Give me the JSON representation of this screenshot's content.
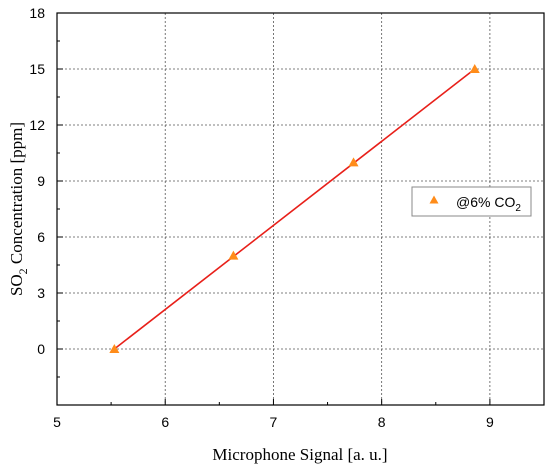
{
  "chart_data": {
    "type": "scatter",
    "xlabel": "Microphone Signal [a. u.]",
    "ylabel": {
      "pre": "SO",
      "sub": "2",
      "post": " Concentration [ppm]"
    },
    "xlim": [
      5,
      9.5
    ],
    "ylim": [
      -3,
      18
    ],
    "x_ticks": [
      5,
      6,
      7,
      8,
      9
    ],
    "y_ticks": [
      0,
      3,
      6,
      9,
      12,
      15,
      18
    ],
    "grid": true,
    "legend_position": "right",
    "series": [
      {
        "name": {
          "pre": "@6% CO",
          "sub": "2"
        },
        "marker": "triangle",
        "color": "#ff8c1a",
        "points": [
          {
            "x": 5.53,
            "y": 0
          },
          {
            "x": 6.63,
            "y": 5
          },
          {
            "x": 7.74,
            "y": 10
          },
          {
            "x": 8.86,
            "y": 15
          }
        ]
      }
    ],
    "fit_line": {
      "color": "#e8201a",
      "x": [
        5.53,
        8.86
      ],
      "y": [
        0,
        15
      ]
    }
  }
}
